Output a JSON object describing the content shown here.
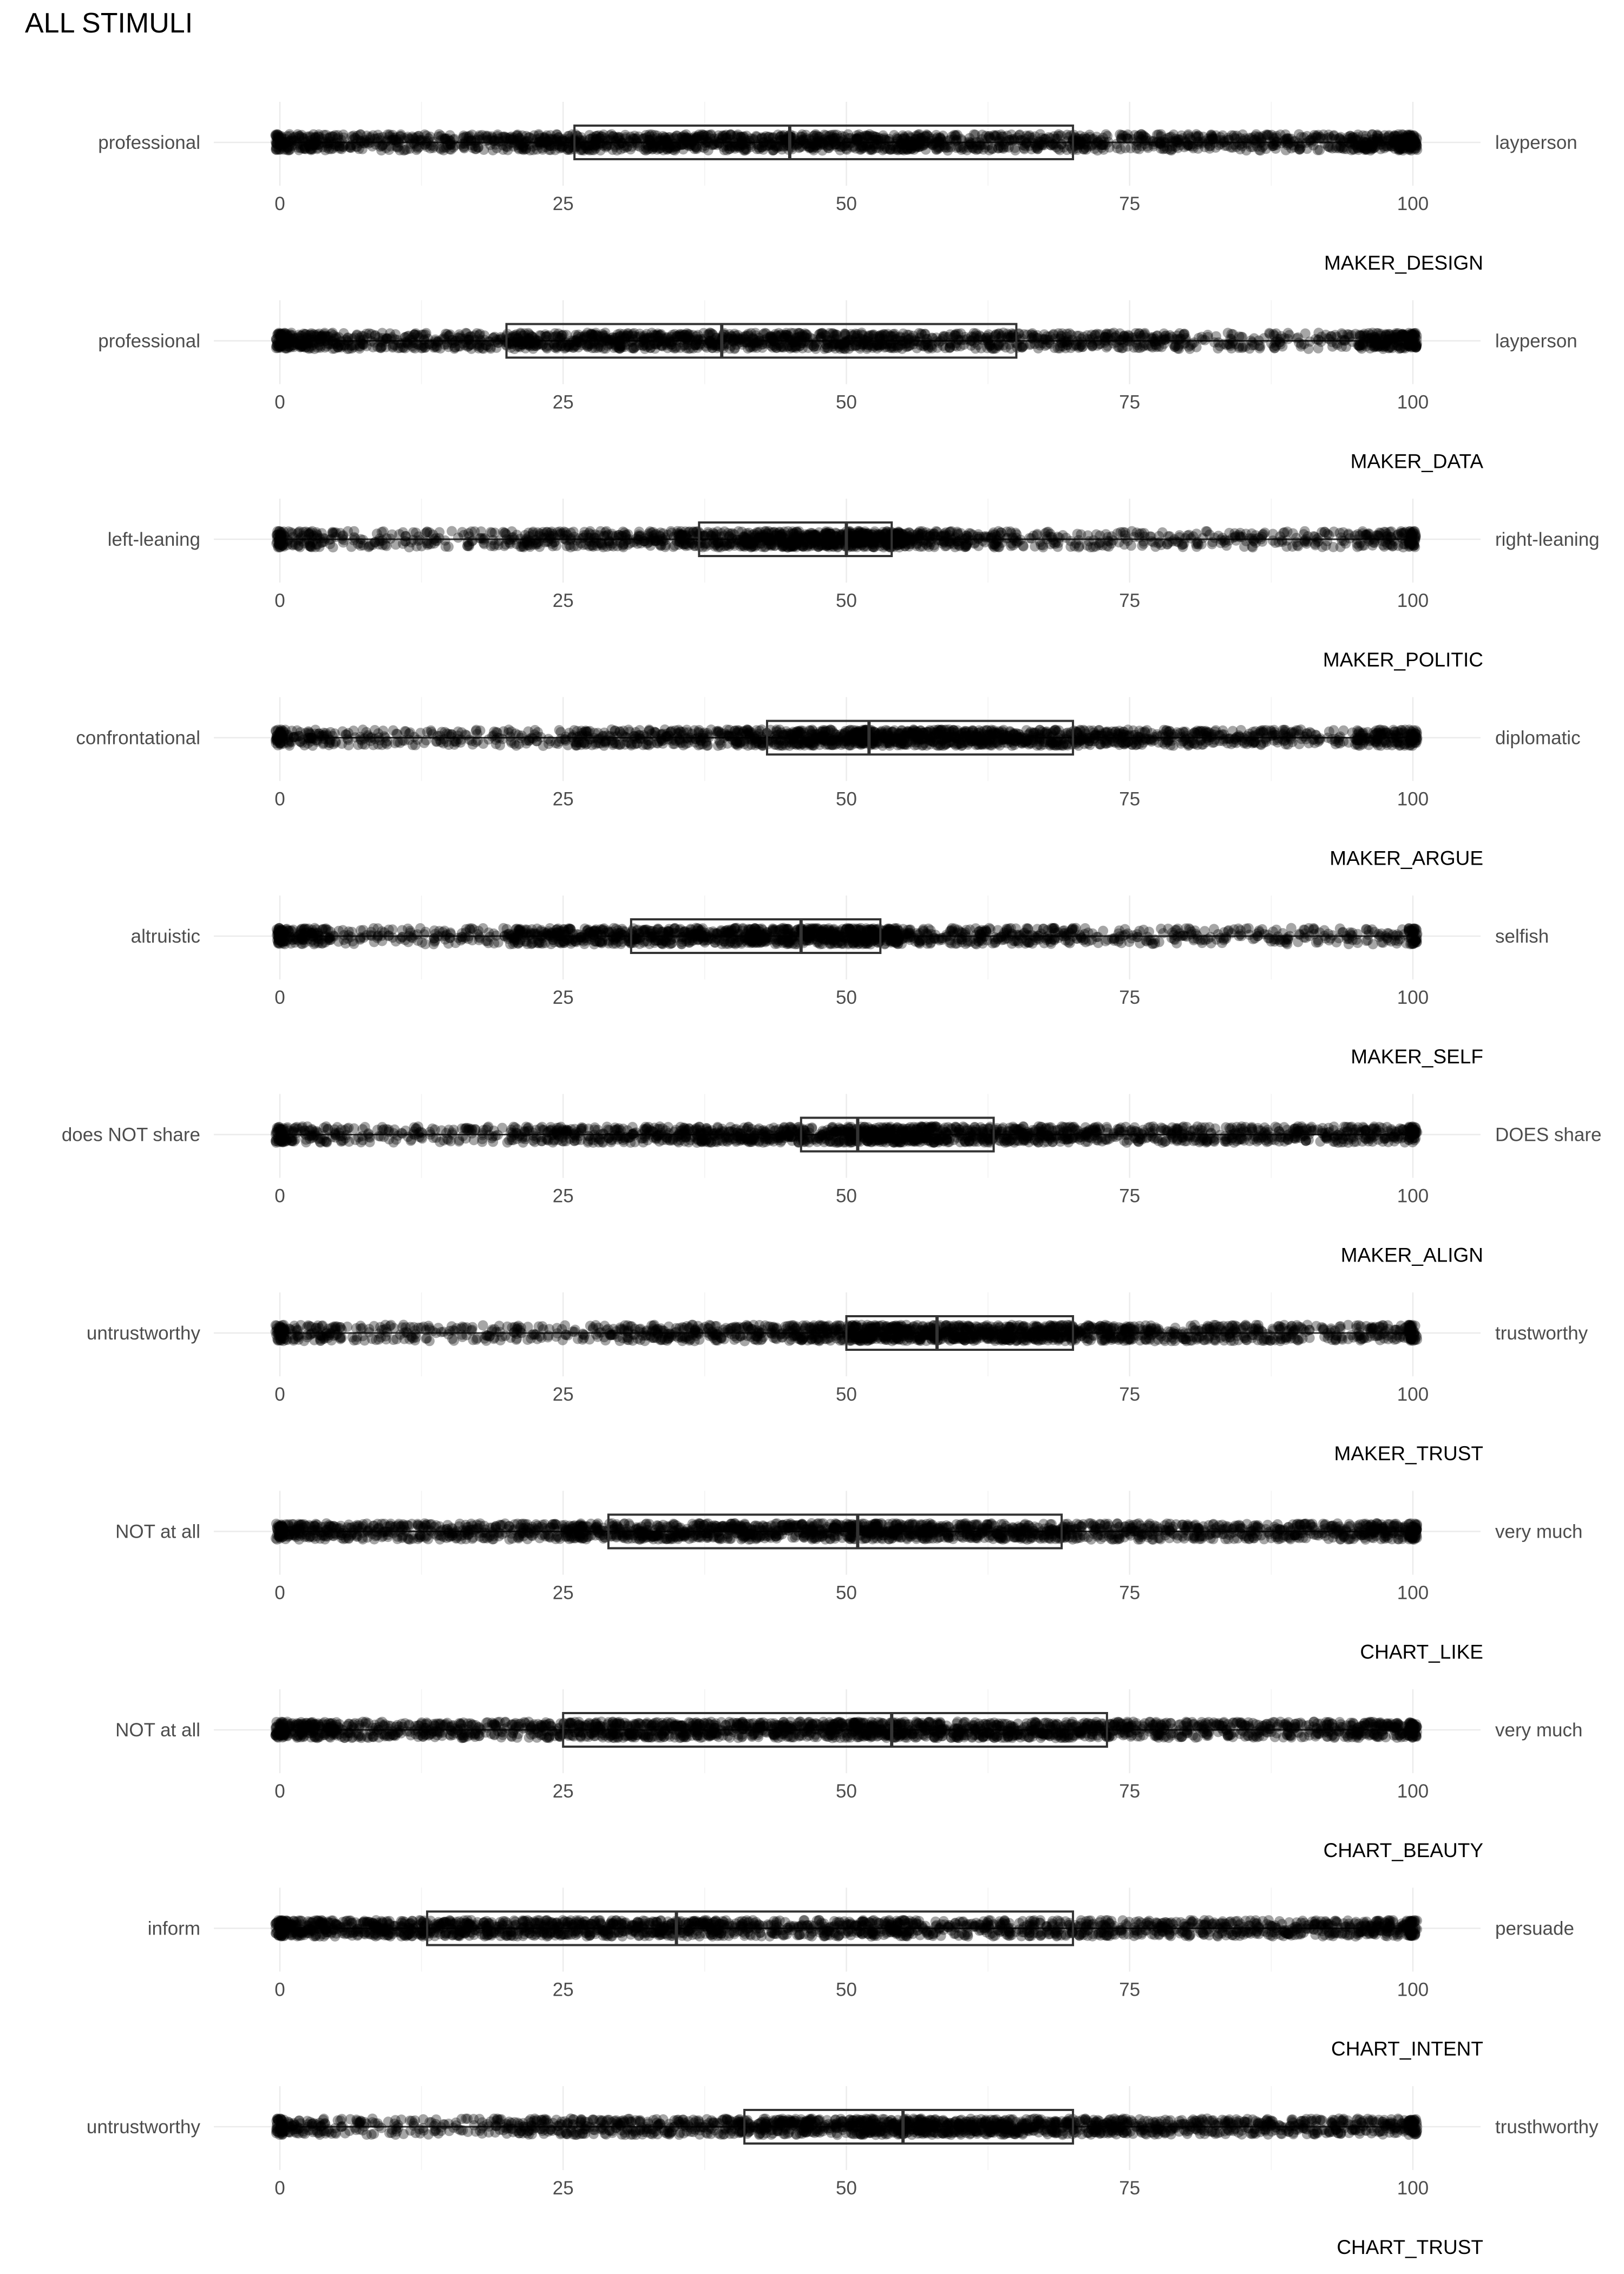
{
  "chart_data": {
    "type": "boxplot",
    "title": "ALL STIMULI",
    "xlim": [
      0,
      100
    ],
    "x_ticks": [
      "0",
      "25",
      "50",
      "75",
      "100"
    ],
    "grid": true,
    "point_color": "#000000",
    "point_alpha": 0.35,
    "panels": [
      {
        "facet": "MAKER_DESIGN",
        "left": "professional",
        "right": "layperson",
        "q1": 26,
        "median": 45,
        "q3": 70,
        "lower_whisker": 0,
        "upper_whisker": 100,
        "density": [
          3,
          2,
          2,
          2,
          3,
          3,
          3,
          3,
          3,
          3,
          3,
          3,
          2,
          2,
          2,
          2,
          2,
          2,
          2,
          4
        ]
      },
      {
        "facet": "MAKER_DATA",
        "left": "professional",
        "right": "layperson",
        "q1": 20,
        "median": 39,
        "q3": 65,
        "lower_whisker": 0,
        "upper_whisker": 100,
        "density": [
          4,
          2,
          2,
          2,
          3,
          3,
          3,
          3,
          3,
          3,
          3,
          2,
          2,
          2,
          2,
          2,
          1,
          1,
          1,
          4
        ]
      },
      {
        "facet": "MAKER_POLITIC",
        "left": "left-leaning",
        "right": "right-leaning",
        "q1": 37,
        "median": 50,
        "q3": 54,
        "lower_whisker": 0,
        "upper_whisker": 100,
        "density": [
          2,
          1,
          1,
          1,
          2,
          2,
          2,
          3,
          4,
          5,
          6,
          3,
          2,
          1,
          1,
          1,
          1,
          1,
          1,
          2
        ]
      },
      {
        "facet": "MAKER_ARGUE",
        "left": "confrontational",
        "right": "diplomatic",
        "q1": 43,
        "median": 52,
        "q3": 70,
        "lower_whisker": 3,
        "upper_whisker": 100,
        "density": [
          2,
          1,
          1,
          1,
          1,
          2,
          2,
          2,
          3,
          4,
          5,
          4,
          4,
          3,
          3,
          2,
          2,
          2,
          1,
          3
        ]
      },
      {
        "facet": "MAKER_SELF",
        "left": "altruistic",
        "right": "selfish",
        "q1": 31,
        "median": 46,
        "q3": 53,
        "lower_whisker": 0,
        "upper_whisker": 100,
        "density": [
          3,
          1,
          1,
          1,
          3,
          3,
          3,
          3,
          4,
          4,
          5,
          2,
          2,
          2,
          1,
          1,
          1,
          1,
          1,
          1
        ]
      },
      {
        "facet": "MAKER_ALIGN",
        "left": "does NOT share",
        "right": "DOES share",
        "q1": 46,
        "median": 51,
        "q3": 63,
        "lower_whisker": 0,
        "upper_whisker": 100,
        "density": [
          2,
          1,
          1,
          1,
          2,
          2,
          2,
          3,
          3,
          3,
          5,
          4,
          3,
          3,
          2,
          2,
          2,
          2,
          2,
          2
        ]
      },
      {
        "facet": "MAKER_TRUST",
        "left": "untrustworthy",
        "right": "trustworthy",
        "q1": 50,
        "median": 58,
        "q3": 70,
        "lower_whisker": 0,
        "upper_whisker": 100,
        "density": [
          2,
          1,
          1,
          1,
          1,
          1,
          2,
          2,
          2,
          3,
          5,
          4,
          4,
          4,
          3,
          2,
          2,
          2,
          1,
          2
        ]
      },
      {
        "facet": "CHART_LIKE",
        "left": "NOT at all",
        "right": "very much",
        "q1": 29,
        "median": 51,
        "q3": 69,
        "lower_whisker": 0,
        "upper_whisker": 100,
        "density": [
          3,
          2,
          2,
          2,
          2,
          3,
          3,
          3,
          3,
          3,
          4,
          3,
          3,
          3,
          2,
          2,
          2,
          2,
          2,
          3
        ]
      },
      {
        "facet": "CHART_BEAUTY",
        "left": "NOT at all",
        "right": "very much",
        "q1": 25,
        "median": 54,
        "q3": 73,
        "lower_whisker": 0,
        "upper_whisker": 100,
        "density": [
          4,
          2,
          2,
          2,
          2,
          3,
          3,
          3,
          3,
          3,
          4,
          3,
          3,
          3,
          3,
          2,
          2,
          2,
          2,
          3
        ]
      },
      {
        "facet": "CHART_INTENT",
        "left": "inform",
        "right": "persuade",
        "q1": 13,
        "median": 35,
        "q3": 70,
        "lower_whisker": 0,
        "upper_whisker": 100,
        "density": [
          4,
          3,
          3,
          3,
          3,
          3,
          3,
          3,
          2,
          2,
          3,
          2,
          2,
          2,
          2,
          2,
          2,
          2,
          2,
          3
        ]
      },
      {
        "facet": "CHART_TRUST",
        "left": "untrustworthy",
        "right": "trusthworthy",
        "q1": 41,
        "median": 55,
        "q3": 70,
        "lower_whisker": 0,
        "upper_whisker": 100,
        "density": [
          2,
          1,
          1,
          1,
          2,
          2,
          2,
          2,
          3,
          3,
          4,
          4,
          4,
          3,
          3,
          2,
          2,
          2,
          2,
          2
        ]
      }
    ]
  }
}
